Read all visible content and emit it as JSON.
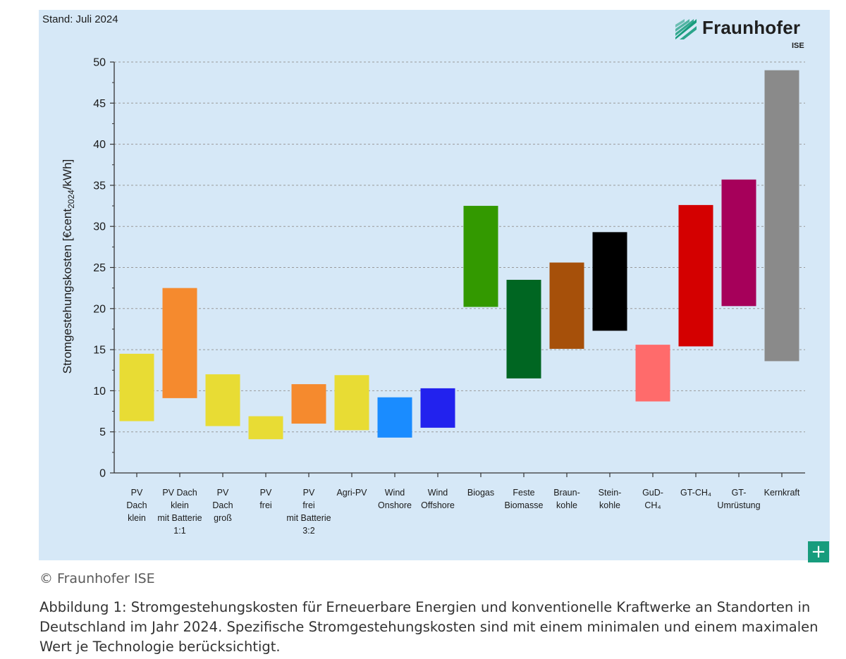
{
  "chart_data": {
    "type": "bar",
    "subtype": "floating-range",
    "stand": "Stand: Juli 2024",
    "ylabel_parts": [
      "Stromgestehungskosten [€cent",
      "2024",
      "/kWh]"
    ],
    "ylim": [
      0,
      50
    ],
    "yticks": [
      0,
      5,
      10,
      15,
      20,
      25,
      30,
      35,
      40,
      45,
      50
    ],
    "grid": "horizontal dashed",
    "bars": [
      {
        "label": [
          "PV",
          "Dach",
          "klein"
        ],
        "min": 6.3,
        "max": 14.5,
        "color": "#e8dc34"
      },
      {
        "label": [
          "PV Dach",
          "klein",
          "mit Batterie",
          "1:1"
        ],
        "min": 9.1,
        "max": 22.5,
        "color": "#f58a2e"
      },
      {
        "label": [
          "PV",
          "Dach",
          "groß"
        ],
        "min": 5.7,
        "max": 12.0,
        "color": "#e8dc34"
      },
      {
        "label": [
          "PV",
          "frei"
        ],
        "min": 4.1,
        "max": 6.9,
        "color": "#e8dc34"
      },
      {
        "label": [
          "PV",
          "frei",
          "mit Batterie",
          "3:2"
        ],
        "min": 6.0,
        "max": 10.8,
        "color": "#f58a2e"
      },
      {
        "label": [
          "Agri-PV"
        ],
        "min": 5.2,
        "max": 11.9,
        "color": "#e8dc34"
      },
      {
        "label": [
          "Wind",
          "Onshore"
        ],
        "min": 4.3,
        "max": 9.2,
        "color": "#1a8cff"
      },
      {
        "label": [
          "Wind",
          "Offshore"
        ],
        "min": 5.5,
        "max": 10.3,
        "color": "#2222ee"
      },
      {
        "label": [
          "Biogas"
        ],
        "min": 20.2,
        "max": 32.5,
        "color": "#339900"
      },
      {
        "label": [
          "Feste",
          "Biomasse"
        ],
        "min": 11.5,
        "max": 23.5,
        "color": "#006622"
      },
      {
        "label": [
          "Braun-",
          "kohle"
        ],
        "min": 15.1,
        "max": 25.6,
        "color": "#a6500a"
      },
      {
        "label": [
          "Stein-",
          "kohle"
        ],
        "min": 17.3,
        "max": 29.3,
        "color": "#000000"
      },
      {
        "label": [
          "GuD-",
          "CH₄"
        ],
        "min": 8.7,
        "max": 15.6,
        "color": "#ff6b6b"
      },
      {
        "label": [
          "GT-CH₄"
        ],
        "min": 15.4,
        "max": 32.6,
        "color": "#d40000"
      },
      {
        "label": [
          "GT-",
          "Umrüstung"
        ],
        "min": 20.3,
        "max": 35.7,
        "color": "#a6005a"
      },
      {
        "label": [
          "Kernkraft"
        ],
        "min": 13.6,
        "max": 49.0,
        "color": "#8a8a8a"
      }
    ]
  },
  "logo": {
    "name": "Fraunhofer",
    "sub": "ISE",
    "color": "#179c7d"
  },
  "expand_label": "+",
  "copyright": "© Fraunhofer ISE",
  "caption": "Abbildung 1: Stromgestehungskosten für Erneuerbare Energien und konventionelle Kraftwerke an Standorten in Deutschland im Jahr 2024. Spezifische Stromgestehungskosten sind mit einem minimalen und einem maximalen Wert je Technologie berücksichtigt."
}
